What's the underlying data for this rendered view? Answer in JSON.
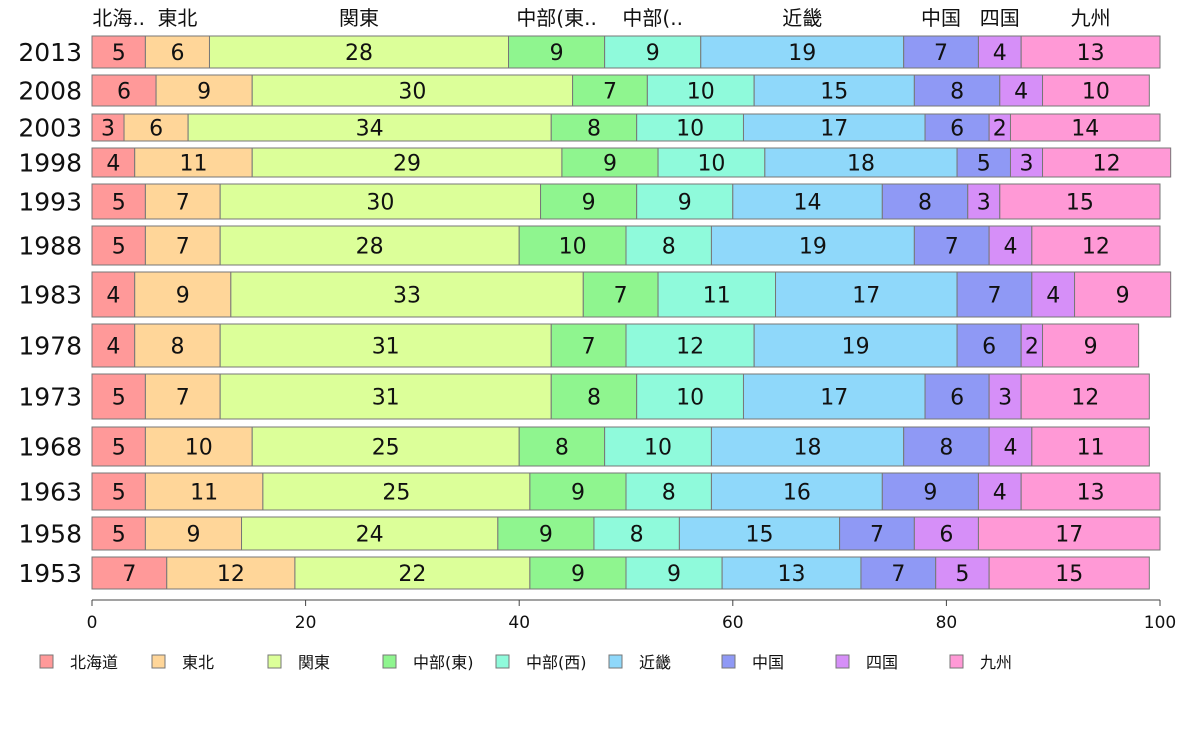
{
  "chart_data": {
    "type": "bar",
    "orientation": "horizontal",
    "stacked": true,
    "title": "",
    "xlabel": "",
    "ylabel": "",
    "xlim": [
      0,
      100
    ],
    "x_ticks": [
      "0",
      "20",
      "40",
      "60",
      "80",
      "100"
    ],
    "categories": [
      "2013",
      "2008",
      "2003",
      "1998",
      "1993",
      "1988",
      "1983",
      "1978",
      "1973",
      "1968",
      "1963",
      "1958",
      "1953"
    ],
    "header_labels": [
      "北海..",
      "東北",
      "関東",
      "中部(東..",
      "中部(..",
      "近畿",
      "中国",
      "四国",
      "九州"
    ],
    "legend_position": "bottom",
    "grid": false,
    "series": [
      {
        "name": "北海道",
        "color": "#ff9999",
        "values": [
          5,
          6,
          3,
          4,
          5,
          5,
          4,
          4,
          5,
          5,
          5,
          5,
          7
        ]
      },
      {
        "name": "東北",
        "color": "#ffd699",
        "values": [
          6,
          9,
          6,
          11,
          7,
          7,
          9,
          8,
          7,
          10,
          11,
          9,
          12
        ]
      },
      {
        "name": "関東",
        "color": "#dcff99",
        "values": [
          28,
          30,
          34,
          29,
          30,
          28,
          33,
          31,
          31,
          25,
          25,
          24,
          22
        ]
      },
      {
        "name": "中部(東)",
        "color": "#8ff58f",
        "values": [
          9,
          7,
          8,
          9,
          9,
          10,
          7,
          7,
          8,
          8,
          9,
          9,
          9
        ]
      },
      {
        "name": "中部(西)",
        "color": "#8ffadb",
        "values": [
          9,
          10,
          10,
          10,
          9,
          8,
          11,
          12,
          10,
          10,
          8,
          8,
          9
        ]
      },
      {
        "name": "近畿",
        "color": "#8fd8fa",
        "values": [
          19,
          15,
          17,
          18,
          14,
          19,
          17,
          19,
          17,
          18,
          16,
          15,
          13
        ]
      },
      {
        "name": "中国",
        "color": "#8f99f5",
        "values": [
          7,
          8,
          6,
          5,
          8,
          7,
          7,
          6,
          6,
          8,
          9,
          7,
          7
        ]
      },
      {
        "name": "四国",
        "color": "#d68ff8",
        "values": [
          4,
          4,
          2,
          3,
          3,
          4,
          4,
          2,
          3,
          4,
          4,
          6,
          5
        ]
      },
      {
        "name": "九州",
        "color": "#ff99d6",
        "values": [
          13,
          10,
          14,
          12,
          15,
          12,
          9,
          9,
          12,
          11,
          13,
          17,
          15
        ]
      }
    ]
  }
}
